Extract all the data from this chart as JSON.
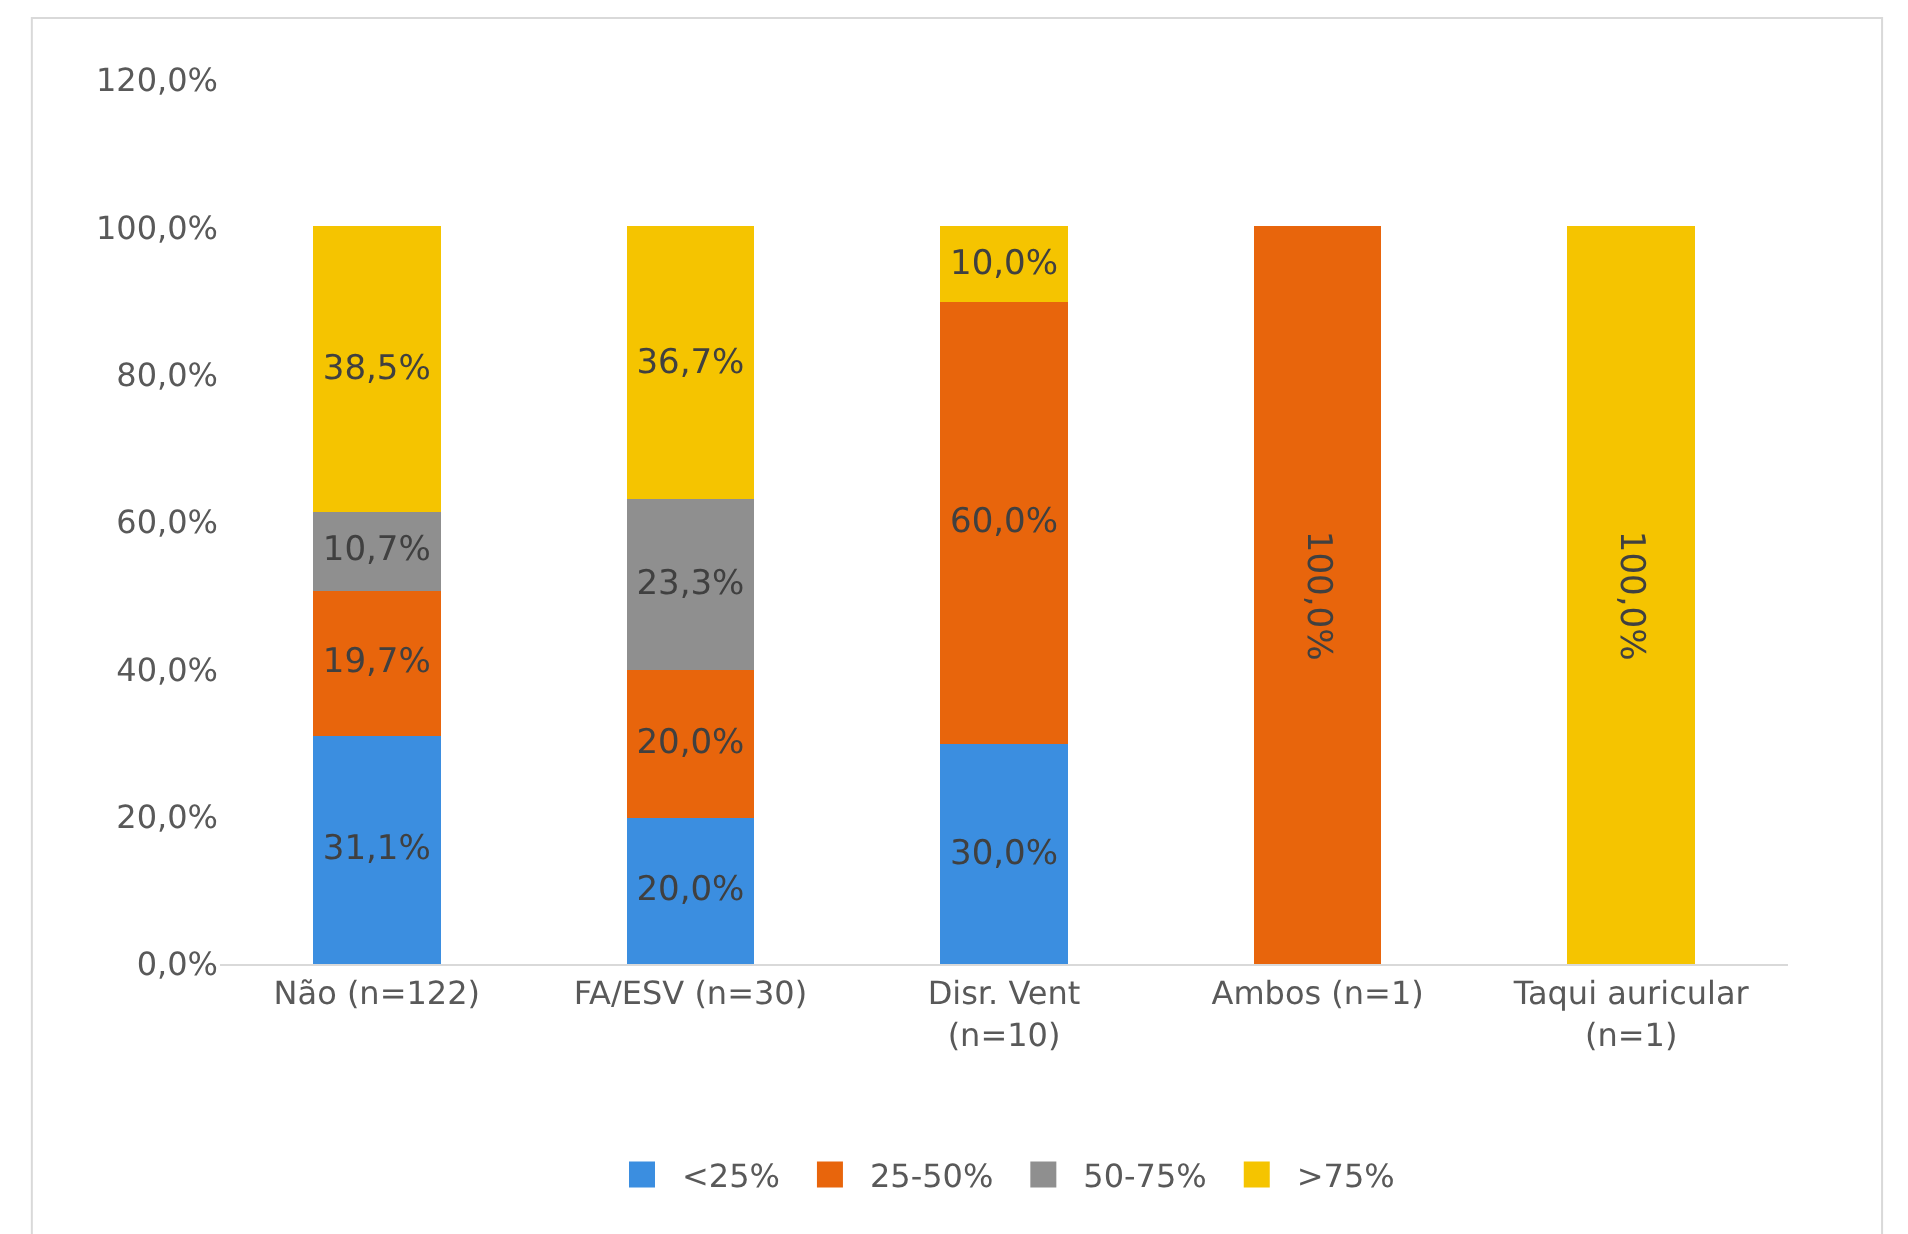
{
  "chart_data": {
    "type": "bar",
    "stacked": true,
    "categories": [
      "Não (n=122)",
      "FA/ESV (n=30)",
      "Disr. Vent\n(n=10)",
      "Ambos (n=1)",
      "Taqui auricular\n(n=1)"
    ],
    "series": [
      {
        "name": "<25%",
        "color": "#3b8ee0",
        "values": [
          31.1,
          20.0,
          30.0,
          null,
          null
        ],
        "value_labels": [
          "31,1%",
          "20,0%",
          "30,0%",
          null,
          null
        ]
      },
      {
        "name": "25-50%",
        "color": "#e8650c",
        "values": [
          19.7,
          20.0,
          60.0,
          100,
          null
        ],
        "value_labels": [
          "19,7%",
          "20,0%",
          "60,0%",
          "100,0%",
          null
        ]
      },
      {
        "name": "50-75%",
        "color": "#8f8f8f",
        "values": [
          10.7,
          23.3,
          null,
          null,
          null
        ],
        "value_labels": [
          "10,7%",
          "23,3%",
          null,
          null,
          null
        ]
      },
      {
        "name": ">75%",
        "color": "#f5c400",
        "values": [
          38.5,
          36.7,
          10.0,
          null,
          100
        ],
        "value_labels": [
          "38,5%",
          "36,7%",
          "10,0%",
          null,
          "100,0%"
        ]
      }
    ],
    "ylim": [
      0,
      120
    ],
    "yticks": [
      {
        "value": 0,
        "label": "0,0%"
      },
      {
        "value": 20,
        "label": "20,0%"
      },
      {
        "value": 40,
        "label": "40,0%"
      },
      {
        "value": 60,
        "label": "60,0%"
      },
      {
        "value": 80,
        "label": "80,0%"
      },
      {
        "value": 100,
        "label": "100,0%"
      },
      {
        "value": 120,
        "label": "120,0%"
      }
    ],
    "grid": false,
    "legend": "bottom"
  }
}
